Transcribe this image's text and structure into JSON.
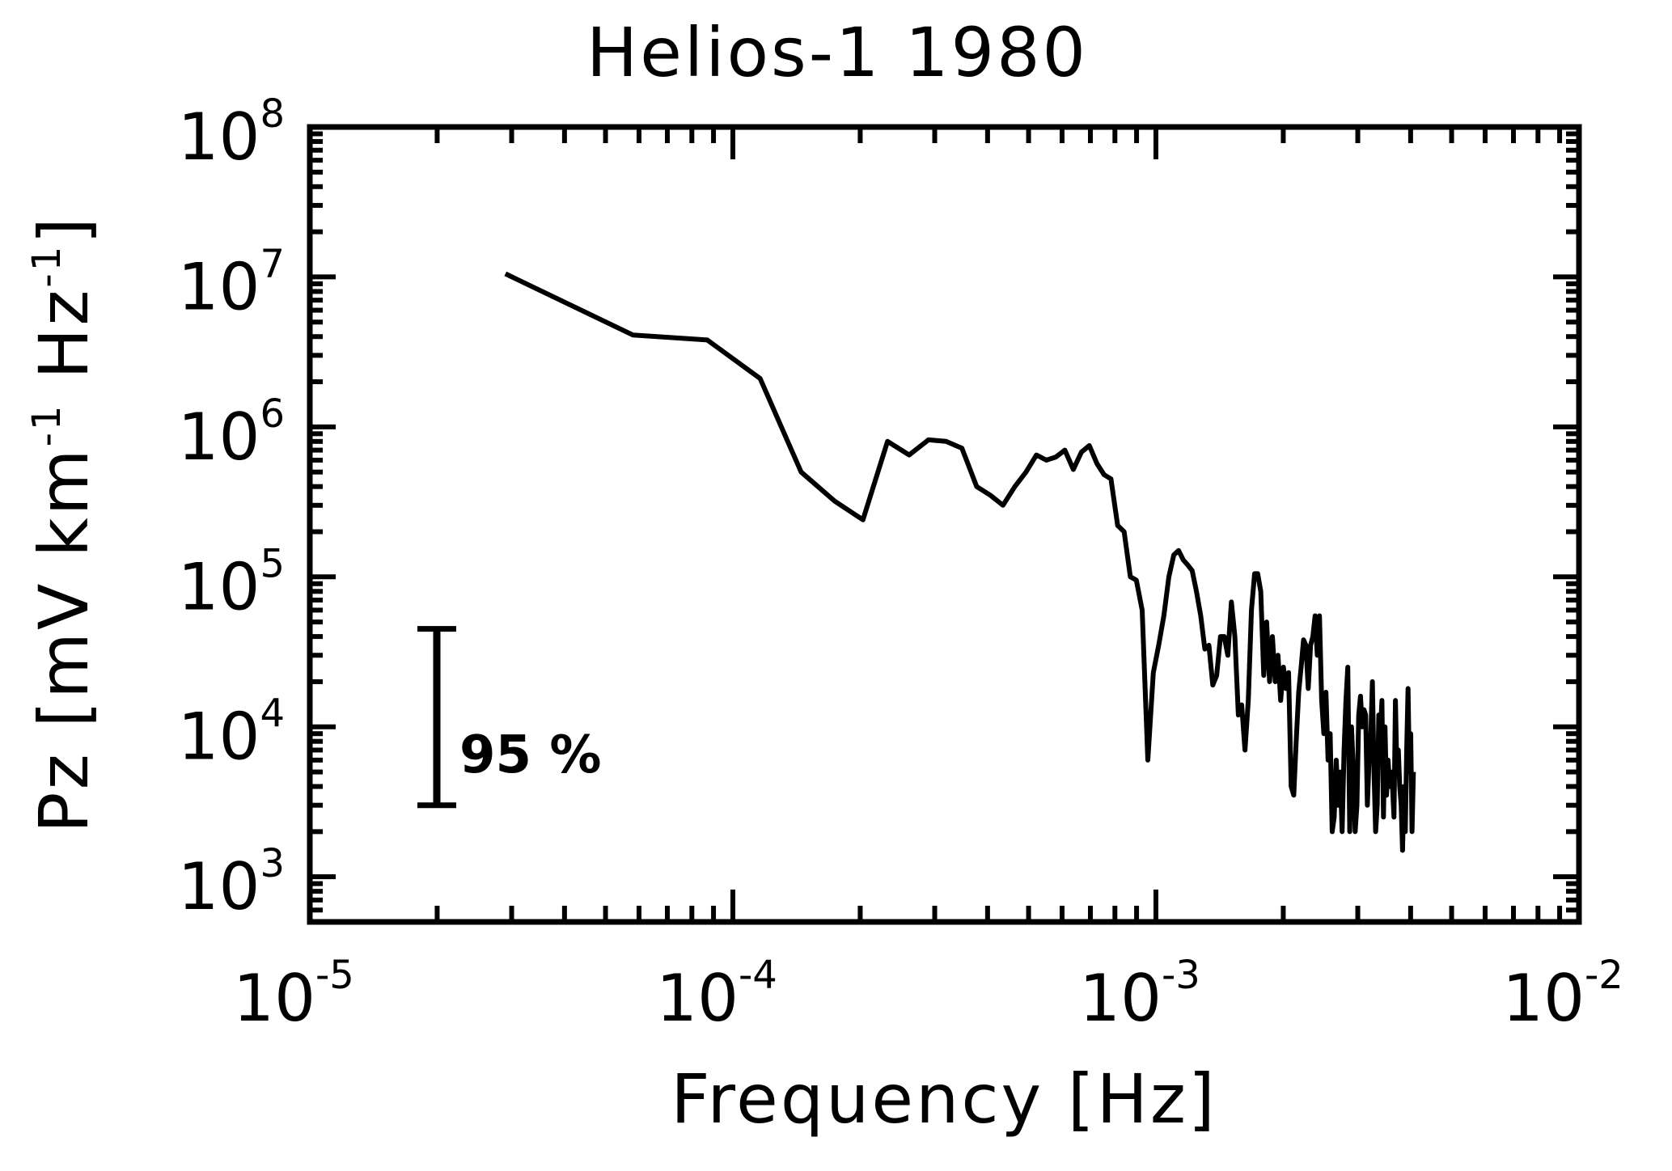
{
  "chart_data": {
    "type": "line",
    "title": "Helios-1 1980",
    "xlabel": "Frequency [Hz]",
    "ylabel": "Pz [mV km",
    "ylabel_exp": "-1",
    "ylabel_mid": " Hz",
    "ylabel_end": "]",
    "x_scale": "log",
    "y_scale": "log",
    "xlim": [
      1e-05,
      0.01
    ],
    "ylim": [
      500,
      100000000
    ],
    "x_ticks": [
      {
        "base": "10",
        "exp": "-5",
        "value": 1e-05
      },
      {
        "base": "10",
        "exp": "-4",
        "value": 0.0001
      },
      {
        "base": "10",
        "exp": "-3",
        "value": 0.001
      },
      {
        "base": "10",
        "exp": "-2",
        "value": 0.01
      }
    ],
    "y_ticks": [
      {
        "base": "10",
        "exp": "3",
        "value": 1000
      },
      {
        "base": "10",
        "exp": "4",
        "value": 10000
      },
      {
        "base": "10",
        "exp": "5",
        "value": 100000
      },
      {
        "base": "10",
        "exp": "6",
        "value": 1000000
      },
      {
        "base": "10",
        "exp": "7",
        "value": 10000000
      },
      {
        "base": "10",
        "exp": "8",
        "value": 100000000
      }
    ],
    "annotation": {
      "text": "95 %",
      "error_bar_low": 3000,
      "error_bar_high": 45000,
      "error_bar_x": 2.9e-05
    },
    "grid": false,
    "series": [
      {
        "color": "#000000",
        "points": [
          [
            2.9e-05,
            10500000.0
          ],
          [
            5.8e-05,
            4100000.0
          ],
          [
            8.7e-05,
            3800000.0
          ],
          [
            0.000116,
            2100000.0
          ],
          [
            0.000145,
            500000.0
          ],
          [
            0.000174,
            320000.0
          ],
          [
            0.000203,
            240000.0
          ],
          [
            0.000232,
            800000.0
          ],
          [
            0.000261,
            650000.0
          ],
          [
            0.00029,
            820000.0
          ],
          [
            0.000319,
            800000.0
          ],
          [
            0.000348,
            720000.0
          ],
          [
            0.000377,
            400000.0
          ],
          [
            0.000406,
            350000.0
          ],
          [
            0.000435,
            300000.0
          ],
          [
            0.000464,
            400000.0
          ],
          [
            0.000493,
            500000.0
          ],
          [
            0.000522,
            650000.0
          ],
          [
            0.000551,
            600000.0
          ],
          [
            0.00058,
            630000.0
          ],
          [
            0.000609,
            700000.0
          ],
          [
            0.000638,
            520000.0
          ],
          [
            0.000667,
            680000.0
          ],
          [
            0.000696,
            750000.0
          ],
          [
            0.000725,
            570000.0
          ],
          [
            0.000754,
            480000.0
          ],
          [
            0.000783,
            450000.0
          ],
          [
            0.000812,
            220000.0
          ],
          [
            0.000841,
            200000.0
          ],
          [
            0.00087,
            100000.0
          ],
          [
            0.000899,
            95000.0
          ],
          [
            0.000928,
            60000.0
          ],
          [
            0.000957,
            6000.0
          ],
          [
            0.000986,
            23000.0
          ],
          [
            0.001015,
            35000.0
          ],
          [
            0.001044,
            55000.0
          ],
          [
            0.001073,
            100000.0
          ],
          [
            0.001102,
            140000.0
          ],
          [
            0.001131,
            150000.0
          ],
          [
            0.00116,
            130000.0
          ],
          [
            0.001189,
            120000.0
          ],
          [
            0.001218,
            110000.0
          ],
          [
            0.001247,
            80000.0
          ],
          [
            0.001276,
            55000.0
          ],
          [
            0.001305,
            33000.0
          ],
          [
            0.001334,
            35000.0
          ],
          [
            0.001363,
            19000.0
          ],
          [
            0.001392,
            22000.0
          ],
          [
            0.001421,
            40000.0
          ],
          [
            0.00145,
            40000.0
          ],
          [
            0.001479,
            30000.0
          ],
          [
            0.001508,
            68000.0
          ],
          [
            0.001537,
            40000.0
          ],
          [
            0.001566,
            12000.0
          ],
          [
            0.001595,
            14000.0
          ],
          [
            0.001624,
            7000.0
          ],
          [
            0.001653,
            15000.0
          ],
          [
            0.001682,
            60000.0
          ],
          [
            0.001711,
            105000.0
          ],
          [
            0.00174,
            105000.0
          ],
          [
            0.001769,
            80000.0
          ],
          [
            0.001798,
            22000.0
          ],
          [
            0.001827,
            50000.0
          ],
          [
            0.001856,
            20000.0
          ],
          [
            0.001885,
            40000.0
          ],
          [
            0.001914,
            20000.0
          ],
          [
            0.001943,
            30000.0
          ],
          [
            0.001972,
            15000.0
          ],
          [
            0.002001,
            25000.0
          ],
          [
            0.00203,
            18000.0
          ],
          [
            0.002059,
            23000.0
          ],
          [
            0.002088,
            4000.0
          ],
          [
            0.002117,
            3500.0
          ],
          [
            0.002146,
            8000.0
          ],
          [
            0.002175,
            17000.0
          ],
          [
            0.002204,
            25000.0
          ],
          [
            0.002233,
            38000.0
          ],
          [
            0.002262,
            35000.0
          ],
          [
            0.002291,
            18000.0
          ],
          [
            0.00232,
            35000.0
          ],
          [
            0.002349,
            40000.0
          ],
          [
            0.002378,
            55000.0
          ],
          [
            0.002407,
            30000.0
          ],
          [
            0.002436,
            55000.0
          ],
          [
            0.002465,
            15000.0
          ],
          [
            0.002494,
            9000.0
          ],
          [
            0.002523,
            17000.0
          ],
          [
            0.002552,
            6000.0
          ],
          [
            0.002581,
            9000.0
          ],
          [
            0.00261,
            2000.0
          ],
          [
            0.002639,
            2500.0
          ],
          [
            0.002668,
            6000.0
          ],
          [
            0.002697,
            3000.0
          ],
          [
            0.002726,
            5000.0
          ],
          [
            0.002755,
            2000.0
          ],
          [
            0.002784,
            7000.0
          ],
          [
            0.002813,
            15000.0
          ],
          [
            0.002842,
            25000.0
          ],
          [
            0.002871,
            2000.0
          ],
          [
            0.0029,
            10000.0
          ],
          [
            0.002929,
            5000.0
          ],
          [
            0.002958,
            2000.0
          ],
          [
            0.002987,
            3000.0
          ],
          [
            0.003016,
            12000.0
          ],
          [
            0.003045,
            16000.0
          ],
          [
            0.003074,
            10000.0
          ],
          [
            0.003103,
            13000.0
          ],
          [
            0.003132,
            12000.0
          ],
          [
            0.003161,
            3000.0
          ],
          [
            0.00319,
            6000.0
          ],
          [
            0.003219,
            8000.0
          ],
          [
            0.003248,
            20000.0
          ],
          [
            0.003277,
            5000.0
          ],
          [
            0.003306,
            2000.0
          ],
          [
            0.003335,
            3000.0
          ],
          [
            0.003364,
            12000.0
          ],
          [
            0.003393,
            9000.0
          ],
          [
            0.003422,
            15000.0
          ],
          [
            0.003451,
            2500.0
          ],
          [
            0.00348,
            10000.0
          ],
          [
            0.003509,
            3500.0
          ],
          [
            0.003538,
            6000.0
          ],
          [
            0.003567,
            4000.0
          ],
          [
            0.003596,
            5000.0
          ],
          [
            0.003625,
            4000.0
          ],
          [
            0.003654,
            2500.0
          ],
          [
            0.003683,
            15000.0
          ],
          [
            0.003712,
            5000.0
          ],
          [
            0.003741,
            7000.0
          ],
          [
            0.00377,
            4000.0
          ],
          [
            0.003799,
            3000.0
          ],
          [
            0.003828,
            1500.0
          ],
          [
            0.003857,
            4000.0
          ],
          [
            0.003886,
            2000.0
          ],
          [
            0.003915,
            7000.0
          ],
          [
            0.003944,
            18000.0
          ],
          [
            0.003973,
            5000.0
          ],
          [
            0.004002,
            9000.0
          ],
          [
            0.004031,
            2000.0
          ],
          [
            0.00406,
            5000.0
          ]
        ]
      }
    ]
  }
}
